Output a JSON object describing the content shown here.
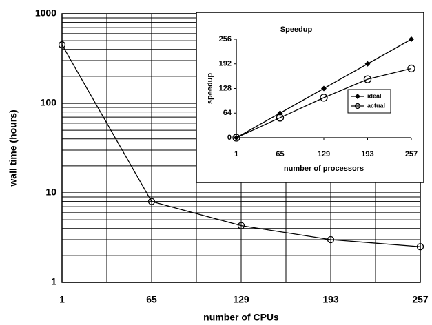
{
  "chart_data": [
    {
      "type": "line",
      "x": [
        1,
        65,
        129,
        193,
        257
      ],
      "series": [
        {
          "name": "wall time",
          "color": "#000000",
          "values": [
            450,
            8,
            4.3,
            3,
            2.5
          ]
        }
      ],
      "xlabel": "number of CPUs",
      "ylabel": "wall time (hours)",
      "xlim": [
        1,
        257
      ],
      "xticks": [
        1,
        65,
        129,
        193,
        257
      ],
      "x_minor_grid": [
        33,
        97,
        161,
        225
      ],
      "ylim": [
        1,
        1000
      ],
      "yticks": [
        1,
        10,
        100,
        1000
      ],
      "log_y": true,
      "grid": true
    },
    {
      "type": "line",
      "title": "Speedup",
      "x": [
        1,
        65,
        129,
        193,
        257
      ],
      "series": [
        {
          "name": "ideal",
          "color": "#000000",
          "marker": "diamond",
          "values": [
            0,
            64,
            128,
            192,
            256
          ]
        },
        {
          "name": "actual",
          "color": "#000000",
          "marker": "circle",
          "values": [
            0,
            52,
            104,
            152,
            180
          ]
        }
      ],
      "xlabel": "number of processors",
      "ylabel": "speedup",
      "xlim": [
        1,
        257
      ],
      "xticks": [
        1,
        65,
        129,
        193,
        257
      ],
      "ylim": [
        0,
        256
      ],
      "yticks": [
        0,
        64,
        128,
        192,
        256
      ],
      "legend": "right"
    }
  ]
}
